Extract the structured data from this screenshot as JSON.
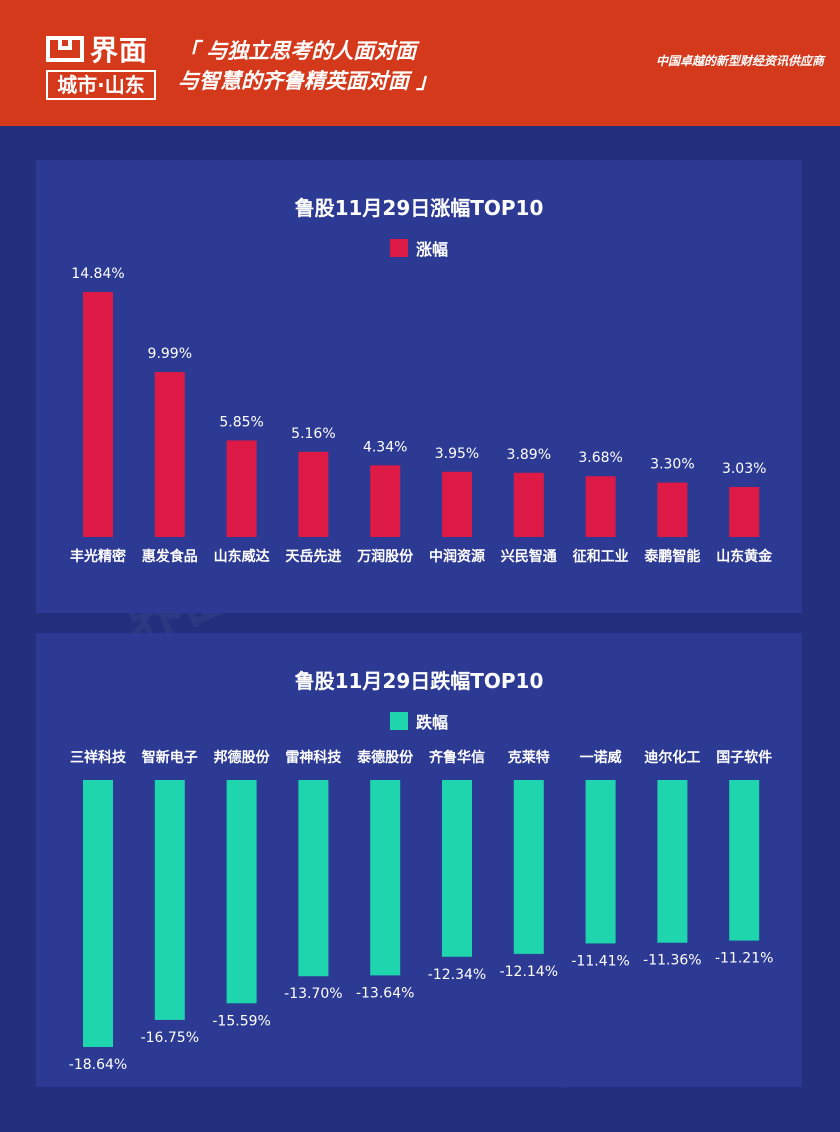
{
  "header": {
    "logo_name": "界面",
    "logo_city": "城市·山东",
    "slogan_line1": "「 与独立思考的人面对面",
    "slogan_line2": "与智慧的齐鲁精英面对面 」",
    "tagline": "中国卓越的新型财经资讯供应商"
  },
  "colors": {
    "header_bg": "#d5391c",
    "page_bg": "#24307d",
    "panel_bg": "#2c3a94",
    "gain": "#dc1a45",
    "loss": "#1fd5ad"
  },
  "chart_data": [
    {
      "type": "bar",
      "title": "鲁股11月29日涨幅TOP10",
      "series": [
        {
          "name": "涨幅",
          "values": [
            14.84,
            9.99,
            5.85,
            5.16,
            4.34,
            3.95,
            3.89,
            3.68,
            3.3,
            3.03
          ]
        }
      ],
      "categories": [
        "丰光精密",
        "惠发食品",
        "山东威达",
        "天岳先进",
        "万润股份",
        "中润资源",
        "兴民智通",
        "征和工业",
        "泰鹏智能",
        "山东黄金"
      ],
      "value_labels": [
        "14.84%",
        "9.99%",
        "5.85%",
        "5.16%",
        "4.34%",
        "3.95%",
        "3.89%",
        "3.68%",
        "3.30%",
        "3.03%"
      ],
      "ylim": [
        0,
        14.84
      ],
      "legend": "top",
      "grid": false
    },
    {
      "type": "bar",
      "title": "鲁股11月29日跌幅TOP10",
      "series": [
        {
          "name": "跌幅",
          "values": [
            -18.64,
            -16.75,
            -15.59,
            -13.7,
            -13.64,
            -12.34,
            -12.14,
            -11.41,
            -11.36,
            -11.21
          ]
        }
      ],
      "categories": [
        "三祥科技",
        "智新电子",
        "邦德股份",
        "雷神科技",
        "泰德股份",
        "齐鲁华信",
        "克莱特",
        "一诺威",
        "迪尔化工",
        "国子软件"
      ],
      "value_labels": [
        "-18.64%",
        "-16.75%",
        "-15.59%",
        "-13.70%",
        "-13.64%",
        "-12.34%",
        "-12.14%",
        "-11.41%",
        "-11.36%",
        "-11.21%"
      ],
      "ylim": [
        -18.64,
        0
      ],
      "legend": "top",
      "grid": false
    }
  ]
}
